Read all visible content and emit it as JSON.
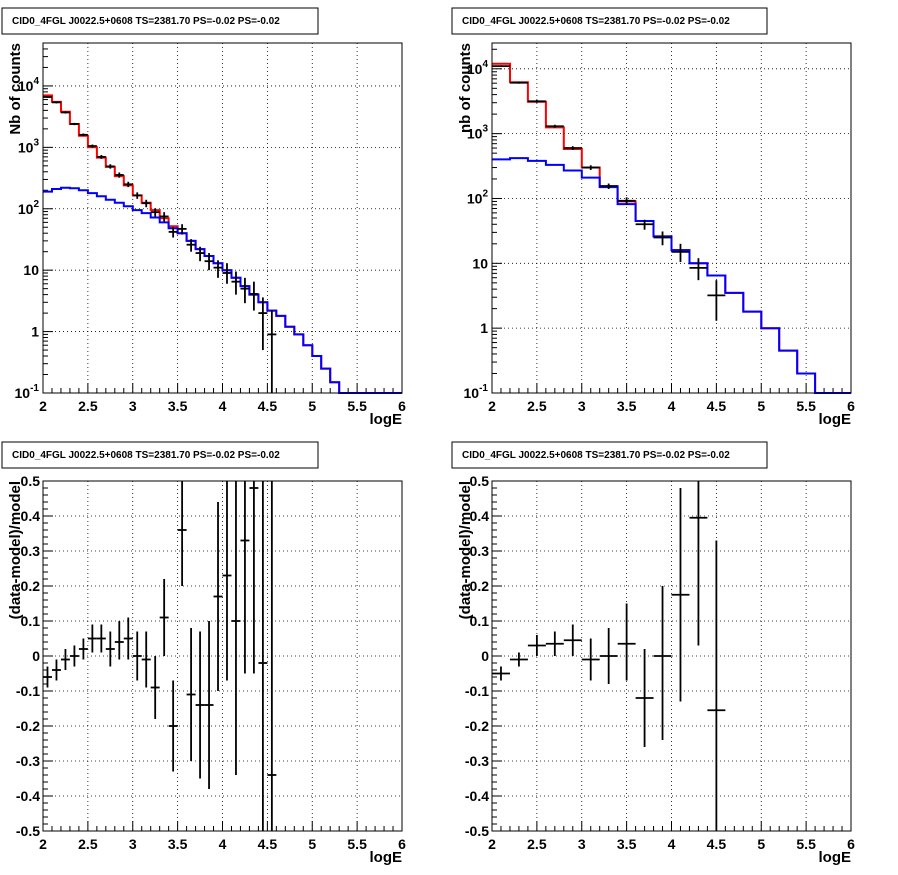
{
  "chart_data": [
    {
      "id": "top-left",
      "type": "step-histogram",
      "title": "CID0_4FGL J0022.5+0608 TS=2381.70 PS=-0.02 PS=-0.02",
      "xlabel": "logE",
      "ylabel": "Nb of counts",
      "xlim": [
        2,
        6
      ],
      "ylim": [
        0.1,
        50000
      ],
      "log_y": true,
      "grid": true,
      "xticks": [
        "2",
        "2.5",
        "3",
        "3.5",
        "4",
        "4.5",
        "5",
        "5.5",
        "6"
      ],
      "yticks": [
        {
          "value": 0.1,
          "base": "10",
          "exp": "-1"
        },
        {
          "value": 1,
          "label": "1"
        },
        {
          "value": 10,
          "label": "10"
        },
        {
          "value": 100,
          "base": "10",
          "exp": "2"
        },
        {
          "value": 1000,
          "base": "10",
          "exp": "3"
        },
        {
          "value": 10000,
          "base": "10",
          "exp": "4"
        }
      ],
      "bin_edges": [
        2.0,
        2.1,
        2.2,
        2.3,
        2.4,
        2.5,
        2.6,
        2.7,
        2.8,
        2.9,
        3.0,
        3.1,
        3.2,
        3.3,
        3.4,
        3.5,
        3.6,
        3.7,
        3.8,
        3.9,
        4.0,
        4.1,
        4.2,
        4.3,
        4.4,
        4.5,
        4.6,
        4.7,
        4.8,
        4.9,
        5.0,
        5.1,
        5.2,
        5.3,
        5.4,
        5.5,
        5.6,
        5.7,
        5.8,
        5.9,
        6.0
      ],
      "series": [
        {
          "color": "#ff0000",
          "values": [
            7000,
            5500,
            3800,
            2400,
            1550,
            1000,
            680,
            480,
            340,
            240,
            165,
            125,
            95,
            70,
            52,
            40,
            30,
            22,
            17,
            13,
            10,
            7.5,
            5.5,
            4,
            3,
            2.2,
            1.8,
            1.2,
            0.9,
            0.6,
            0.4,
            0.25,
            0.15,
            0.1,
            0.1,
            0.1,
            0.1,
            0.1,
            0.1,
            0.1
          ]
        },
        {
          "color": "#0000ff",
          "values": [
            190,
            210,
            220,
            215,
            200,
            180,
            160,
            140,
            125,
            110,
            95,
            85,
            72,
            60,
            48,
            40,
            30,
            22,
            17,
            13,
            10,
            7.5,
            5.5,
            4,
            3,
            2.2,
            1.8,
            1.2,
            0.9,
            0.6,
            0.4,
            0.25,
            0.15,
            0.1,
            0.1,
            0.1,
            0.1,
            0.1,
            0.1,
            0.1
          ]
        }
      ],
      "data_points": [
        {
          "x": 2.05,
          "y": 6600,
          "lo": 6400,
          "hi": 6800
        },
        {
          "x": 2.15,
          "y": 5400,
          "lo": 5200,
          "hi": 5600
        },
        {
          "x": 2.25,
          "y": 3700,
          "lo": 3550,
          "hi": 3850
        },
        {
          "x": 2.35,
          "y": 2400,
          "lo": 2300,
          "hi": 2500
        },
        {
          "x": 2.45,
          "y": 1600,
          "lo": 1520,
          "hi": 1680
        },
        {
          "x": 2.55,
          "y": 1050,
          "lo": 990,
          "hi": 1110
        },
        {
          "x": 2.65,
          "y": 700,
          "lo": 650,
          "hi": 750
        },
        {
          "x": 2.75,
          "y": 490,
          "lo": 450,
          "hi": 530
        },
        {
          "x": 2.85,
          "y": 355,
          "lo": 320,
          "hi": 390
        },
        {
          "x": 2.95,
          "y": 250,
          "lo": 225,
          "hi": 275
        },
        {
          "x": 3.05,
          "y": 165,
          "lo": 145,
          "hi": 185
        },
        {
          "x": 3.15,
          "y": 123,
          "lo": 106,
          "hi": 140
        },
        {
          "x": 3.25,
          "y": 88,
          "lo": 74,
          "hi": 102
        },
        {
          "x": 3.35,
          "y": 75,
          "lo": 62,
          "hi": 88
        },
        {
          "x": 3.45,
          "y": 42,
          "lo": 34,
          "hi": 50
        },
        {
          "x": 3.55,
          "y": 47,
          "lo": 38,
          "hi": 56
        },
        {
          "x": 3.65,
          "y": 26,
          "lo": 20,
          "hi": 32
        },
        {
          "x": 3.75,
          "y": 19,
          "lo": 14,
          "hi": 24
        },
        {
          "x": 3.85,
          "y": 14,
          "lo": 10,
          "hi": 19
        },
        {
          "x": 3.95,
          "y": 11,
          "lo": 7.5,
          "hi": 14.5
        },
        {
          "x": 4.05,
          "y": 9,
          "lo": 6,
          "hi": 13
        },
        {
          "x": 4.15,
          "y": 6.5,
          "lo": 4,
          "hi": 9.5
        },
        {
          "x": 4.25,
          "y": 5,
          "lo": 2.9,
          "hi": 7.5
        },
        {
          "x": 4.35,
          "y": 4.1,
          "lo": 2.2,
          "hi": 6.5
        },
        {
          "x": 4.45,
          "y": 2.0,
          "lo": 0.5,
          "hi": 3.6
        },
        {
          "x": 4.55,
          "y": 0.9,
          "lo": 0.1,
          "hi": 2.2
        }
      ]
    },
    {
      "id": "top-right",
      "type": "step-histogram",
      "title": "CID0_4FGL J0022.5+0608 TS=2381.70 PS=-0.02 PS=-0.02",
      "xlabel": "logE",
      "ylabel": "nb of counts",
      "xlim": [
        2,
        6
      ],
      "ylim": [
        0.1,
        25000
      ],
      "log_y": true,
      "grid": true,
      "xticks": [
        "2",
        "2.5",
        "3",
        "3.5",
        "4",
        "4.5",
        "5",
        "5.5",
        "6"
      ],
      "yticks": [
        {
          "value": 0.1,
          "base": "10",
          "exp": "-1"
        },
        {
          "value": 1,
          "label": "1"
        },
        {
          "value": 10,
          "label": "10"
        },
        {
          "value": 100,
          "base": "10",
          "exp": "2"
        },
        {
          "value": 1000,
          "base": "10",
          "exp": "3"
        },
        {
          "value": 10000,
          "base": "10",
          "exp": "4"
        }
      ],
      "bin_edges": [
        2.0,
        2.2,
        2.4,
        2.6,
        2.8,
        3.0,
        3.2,
        3.4,
        3.6,
        3.8,
        4.0,
        4.2,
        4.4,
        4.6,
        4.8,
        5.0,
        5.2,
        5.4,
        5.6,
        5.8,
        6.0
      ],
      "series": [
        {
          "color": "#ff0000",
          "values": [
            12000,
            6200,
            3100,
            1250,
            580,
            300,
            155,
            90,
            45,
            26,
            16,
            10,
            6.5,
            3.5,
            1.8,
            1.0,
            0.45,
            0.2,
            0.1,
            0.1
          ]
        },
        {
          "color": "#0000ff",
          "values": [
            400,
            420,
            380,
            330,
            270,
            210,
            150,
            82,
            45,
            26,
            16,
            10,
            6.5,
            3.5,
            1.8,
            1.0,
            0.45,
            0.2,
            0.1,
            0.1
          ]
        }
      ],
      "data_points": [
        {
          "x": 2.1,
          "y": 11000,
          "lo": 10700,
          "hi": 11300
        },
        {
          "x": 2.3,
          "y": 6100,
          "lo": 5900,
          "hi": 6300
        },
        {
          "x": 2.5,
          "y": 3150,
          "lo": 3000,
          "hi": 3300
        },
        {
          "x": 2.7,
          "y": 1300,
          "lo": 1230,
          "hi": 1370
        },
        {
          "x": 2.9,
          "y": 600,
          "lo": 560,
          "hi": 640
        },
        {
          "x": 3.1,
          "y": 300,
          "lo": 275,
          "hi": 325
        },
        {
          "x": 3.3,
          "y": 155,
          "lo": 140,
          "hi": 170
        },
        {
          "x": 3.5,
          "y": 92,
          "lo": 80,
          "hi": 104
        },
        {
          "x": 3.7,
          "y": 40,
          "lo": 33,
          "hi": 47
        },
        {
          "x": 3.9,
          "y": 25,
          "lo": 19,
          "hi": 31
        },
        {
          "x": 4.1,
          "y": 15,
          "lo": 10.5,
          "hi": 20
        },
        {
          "x": 4.3,
          "y": 8.5,
          "lo": 5.5,
          "hi": 12
        },
        {
          "x": 4.5,
          "y": 3.2,
          "lo": 1.3,
          "hi": 5.5
        }
      ]
    },
    {
      "id": "bottom-left",
      "type": "scatter-errorbars",
      "title": "CID0_4FGL J0022.5+0608 TS=2381.70 PS=-0.02 PS=-0.02",
      "xlabel": "logE",
      "ylabel": "(data-model)/model",
      "xlim": [
        2,
        6
      ],
      "ylim": [
        -0.5,
        0.5
      ],
      "log_y": false,
      "grid": true,
      "xticks": [
        "2",
        "2.5",
        "3",
        "3.5",
        "4",
        "4.5",
        "5",
        "5.5",
        "6"
      ],
      "yticks": [
        "-0.5",
        "-0.4",
        "-0.3",
        "-0.2",
        "-0.1",
        "0",
        "0.1",
        "0.2",
        "0.3",
        "0.4",
        "0.5"
      ],
      "data_points": [
        {
          "x": 2.05,
          "y": -0.06,
          "lo": -0.09,
          "hi": -0.03
        },
        {
          "x": 2.15,
          "y": -0.04,
          "lo": -0.07,
          "hi": -0.01
        },
        {
          "x": 2.25,
          "y": -0.01,
          "lo": -0.04,
          "hi": 0.02
        },
        {
          "x": 2.35,
          "y": 0.0,
          "lo": -0.03,
          "hi": 0.03
        },
        {
          "x": 2.45,
          "y": 0.02,
          "lo": -0.01,
          "hi": 0.05
        },
        {
          "x": 2.55,
          "y": 0.05,
          "lo": 0.01,
          "hi": 0.09
        },
        {
          "x": 2.65,
          "y": 0.05,
          "lo": 0.01,
          "hi": 0.09
        },
        {
          "x": 2.75,
          "y": 0.02,
          "lo": -0.03,
          "hi": 0.07
        },
        {
          "x": 2.85,
          "y": 0.04,
          "lo": -0.01,
          "hi": 0.1
        },
        {
          "x": 2.95,
          "y": 0.05,
          "lo": -0.01,
          "hi": 0.11
        },
        {
          "x": 3.05,
          "y": 0.0,
          "lo": -0.07,
          "hi": 0.07
        },
        {
          "x": 3.15,
          "y": -0.01,
          "lo": -0.09,
          "hi": 0.07
        },
        {
          "x": 3.25,
          "y": -0.09,
          "lo": -0.18,
          "hi": 0.0
        },
        {
          "x": 3.35,
          "y": 0.11,
          "lo": 0.0,
          "hi": 0.22
        },
        {
          "x": 3.45,
          "y": -0.2,
          "lo": -0.33,
          "hi": -0.07
        },
        {
          "x": 3.55,
          "y": 0.36,
          "lo": 0.2,
          "hi": 0.5
        },
        {
          "x": 3.65,
          "y": -0.11,
          "lo": -0.3,
          "hi": 0.08
        },
        {
          "x": 3.75,
          "y": -0.14,
          "lo": -0.35,
          "hi": 0.07
        },
        {
          "x": 3.85,
          "y": -0.14,
          "lo": -0.38,
          "hi": 0.1
        },
        {
          "x": 3.95,
          "y": 0.17,
          "lo": -0.1,
          "hi": 0.44
        },
        {
          "x": 4.05,
          "y": 0.23,
          "lo": -0.07,
          "hi": 0.5
        },
        {
          "x": 4.15,
          "y": 0.1,
          "lo": -0.34,
          "hi": 0.5
        },
        {
          "x": 4.25,
          "y": 0.33,
          "lo": -0.05,
          "hi": 0.5
        },
        {
          "x": 4.35,
          "y": 0.48,
          "lo": -0.05,
          "hi": 0.5
        },
        {
          "x": 4.45,
          "y": -0.02,
          "lo": -0.5,
          "hi": 0.5
        },
        {
          "x": 4.55,
          "y": -0.34,
          "lo": -0.5,
          "hi": 0.5
        }
      ]
    },
    {
      "id": "bottom-right",
      "type": "scatter-errorbars",
      "title": "CID0_4FGL J0022.5+0608 TS=2381.70 PS=-0.02 PS=-0.02",
      "xlabel": "logE",
      "ylabel": "(data-model)/model",
      "xlim": [
        2,
        6
      ],
      "ylim": [
        -0.5,
        0.5
      ],
      "log_y": false,
      "grid": true,
      "xticks": [
        "2",
        "2.5",
        "3",
        "3.5",
        "4",
        "4.5",
        "5",
        "5.5",
        "6"
      ],
      "yticks": [
        "-0.5",
        "-0.4",
        "-0.3",
        "-0.2",
        "-0.1",
        "0",
        "0.1",
        "0.2",
        "0.3",
        "0.4",
        "0.5"
      ],
      "data_points": [
        {
          "x": 2.1,
          "y": -0.05,
          "lo": -0.07,
          "hi": -0.03
        },
        {
          "x": 2.3,
          "y": -0.01,
          "lo": -0.03,
          "hi": 0.01
        },
        {
          "x": 2.5,
          "y": 0.03,
          "lo": 0.0,
          "hi": 0.06
        },
        {
          "x": 2.7,
          "y": 0.035,
          "lo": 0.0,
          "hi": 0.07
        },
        {
          "x": 2.9,
          "y": 0.045,
          "lo": 0.0,
          "hi": 0.09
        },
        {
          "x": 3.1,
          "y": -0.01,
          "lo": -0.07,
          "hi": 0.05
        },
        {
          "x": 3.3,
          "y": 0.0,
          "lo": -0.08,
          "hi": 0.08
        },
        {
          "x": 3.5,
          "y": 0.035,
          "lo": -0.07,
          "hi": 0.15
        },
        {
          "x": 3.7,
          "y": -0.12,
          "lo": -0.26,
          "hi": 0.02
        },
        {
          "x": 3.9,
          "y": 0.0,
          "lo": -0.24,
          "hi": 0.2
        },
        {
          "x": 4.1,
          "y": 0.175,
          "lo": -0.13,
          "hi": 0.48
        },
        {
          "x": 4.3,
          "y": 0.395,
          "lo": 0.03,
          "hi": 0.5
        },
        {
          "x": 4.5,
          "y": -0.155,
          "lo": -0.5,
          "hi": 0.33
        }
      ]
    }
  ]
}
